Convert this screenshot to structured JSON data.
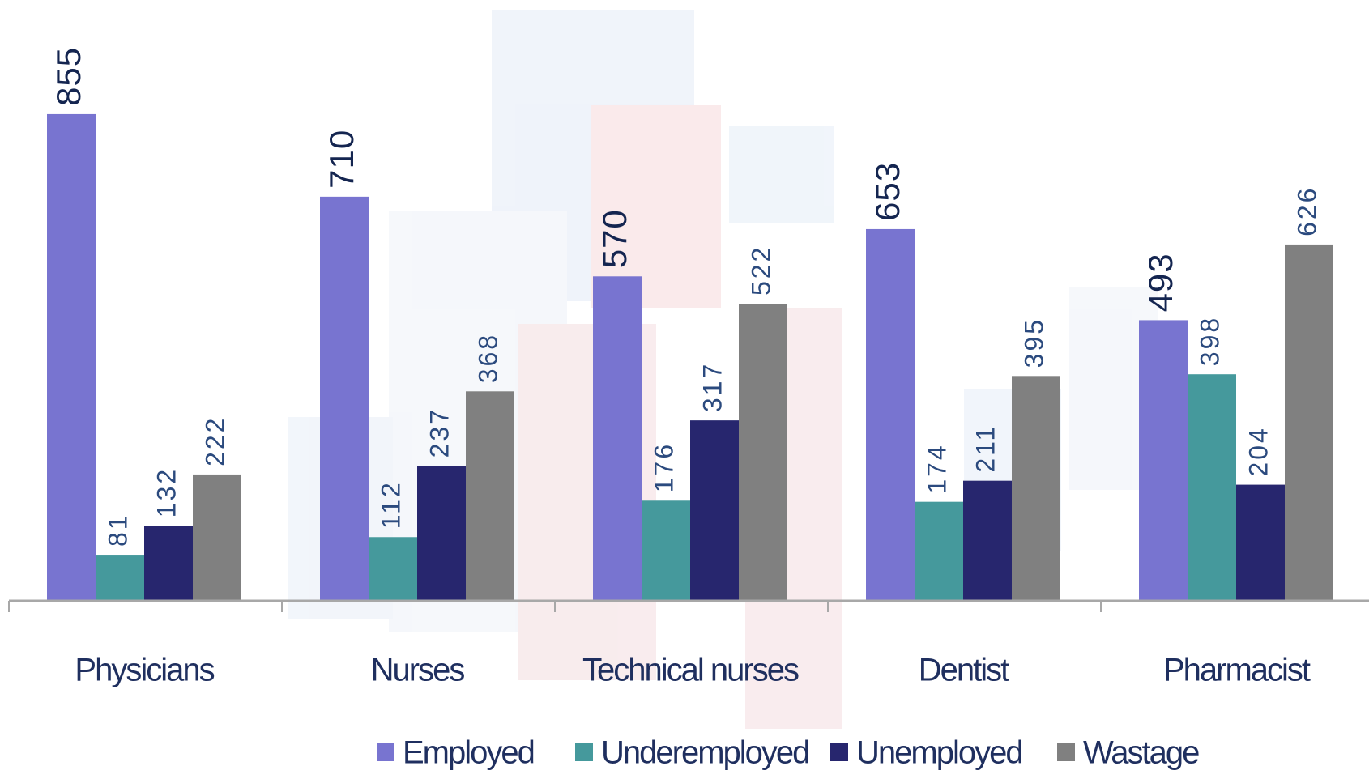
{
  "chart_data": {
    "type": "bar",
    "categories": [
      "Physicians",
      "Nurses",
      "Technical nurses",
      "Dentist",
      "Pharmacist"
    ],
    "series": [
      {
        "name": "Employed",
        "color": "#7874d0",
        "values": [
          855,
          710,
          570,
          653,
          493
        ]
      },
      {
        "name": "Underemployed",
        "color": "#45999c",
        "values": [
          81,
          112,
          176,
          174,
          398
        ]
      },
      {
        "name": "Unemployed",
        "color": "#27266e",
        "values": [
          132,
          237,
          317,
          211,
          204
        ]
      },
      {
        "name": "Wastage",
        "color": "#808080",
        "values": [
          222,
          368,
          522,
          395,
          626
        ]
      }
    ],
    "ylim": [
      0,
      1000
    ]
  }
}
